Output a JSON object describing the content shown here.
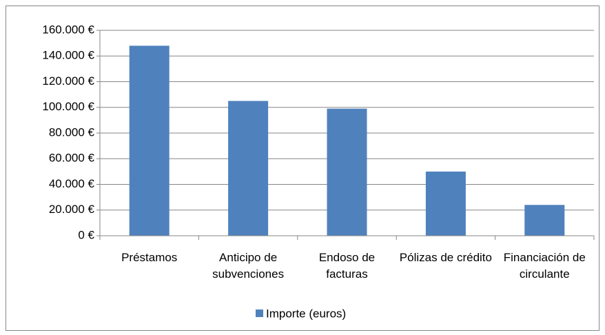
{
  "chart_data": {
    "type": "bar",
    "categories": [
      "Préstamos",
      "Anticipo de subvenciones",
      "Endoso de facturas",
      "Pólizas de crédito",
      "Financiación de circulante"
    ],
    "series": [
      {
        "name": "Importe (euros)",
        "color": "#4f81bd",
        "values": [
          148000,
          105000,
          99000,
          50000,
          24000
        ]
      }
    ],
    "ylim": [
      0,
      160000
    ],
    "yticks": [
      {
        "value": 0,
        "label": "0 €"
      },
      {
        "value": 20000,
        "label": "20.000 €"
      },
      {
        "value": 40000,
        "label": "40.000 €"
      },
      {
        "value": 60000,
        "label": "60.000 €"
      },
      {
        "value": 80000,
        "label": "80.000 €"
      },
      {
        "value": 100000,
        "label": "100.000 €"
      },
      {
        "value": 120000,
        "label": "120.000 €"
      },
      {
        "value": 140000,
        "label": "140.000 €"
      },
      {
        "value": 160000,
        "label": "160.000 €"
      }
    ],
    "grid": true,
    "legend": "bottom"
  }
}
